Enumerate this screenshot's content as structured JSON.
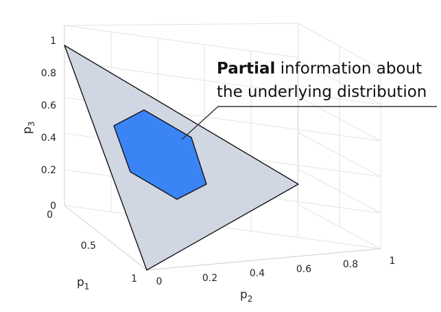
{
  "annotation": {
    "bold": "Partial",
    "line1_rest": " information about",
    "line2": "the underlying distribution"
  },
  "axes": {
    "p1": {
      "letter": "p",
      "sub": "1",
      "ticks": [
        "0",
        "0.5",
        "1"
      ]
    },
    "p2": {
      "letter": "p",
      "sub": "2",
      "ticks": [
        "0",
        "0.2",
        "0.4",
        "0.6",
        "0.8",
        "1"
      ]
    },
    "p3": {
      "letter": "p",
      "sub": "3",
      "ticks": [
        "0",
        "0.2",
        "0.4",
        "0.6",
        "0.8",
        "1"
      ]
    }
  },
  "colors": {
    "simplex_fill": "#d1d7e2",
    "region_fill": "#3a84f5",
    "grid": "#e3e3e3",
    "axis": "#d0d0d0"
  }
}
